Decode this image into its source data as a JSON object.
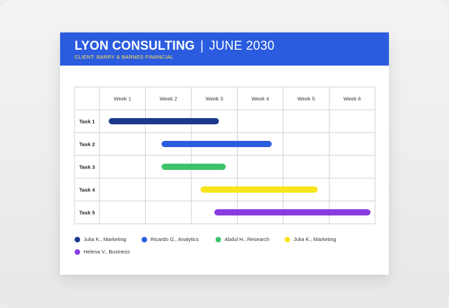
{
  "header": {
    "company": "LYON CONSULTING",
    "separator": "|",
    "date": "JUNE 2030",
    "client": "CLIENT: BARRY & BARNES FINANCIAL"
  },
  "colors": {
    "header_bg": "#2b5ce0",
    "client_text": "#ffe24a"
  },
  "chart_data": {
    "type": "gantt",
    "grid": true,
    "columns": [
      "Week 1",
      "Week 2",
      "Week 3",
      "Week 4",
      "Week 5",
      "Week 6"
    ],
    "tasks": [
      {
        "label": "Task 1",
        "start_week": 1.2,
        "end_week": 3.6,
        "assignee": "Julia K., Marketing",
        "color": "#1b3a8c"
      },
      {
        "label": "Task 2",
        "start_week": 2.35,
        "end_week": 4.75,
        "assignee": "Ricardo G., Analytics",
        "color": "#2b5ce0"
      },
      {
        "label": "Task 3",
        "start_week": 2.35,
        "end_week": 3.75,
        "assignee": "Abdul H., Research",
        "color": "#3cc36a"
      },
      {
        "label": "Task 4",
        "start_week": 3.2,
        "end_week": 5.75,
        "assignee": "Julia K., Marketing",
        "color": "#f7e41a"
      },
      {
        "label": "Task 5",
        "start_week": 3.5,
        "end_week": 6.9,
        "assignee": "Helena V., Business",
        "color": "#8a3be0"
      }
    ]
  },
  "legend": [
    {
      "label": "Julia K., Marketing",
      "color": "#1b3a8c"
    },
    {
      "label": "Ricardo G., Analytics",
      "color": "#2b5ce0"
    },
    {
      "label": "Abdul H., Research",
      "color": "#3cc36a"
    },
    {
      "label": "Julia K., Marketing",
      "color": "#f7e41a"
    },
    {
      "label": "Helena V., Business",
      "color": "#8a3be0"
    }
  ]
}
